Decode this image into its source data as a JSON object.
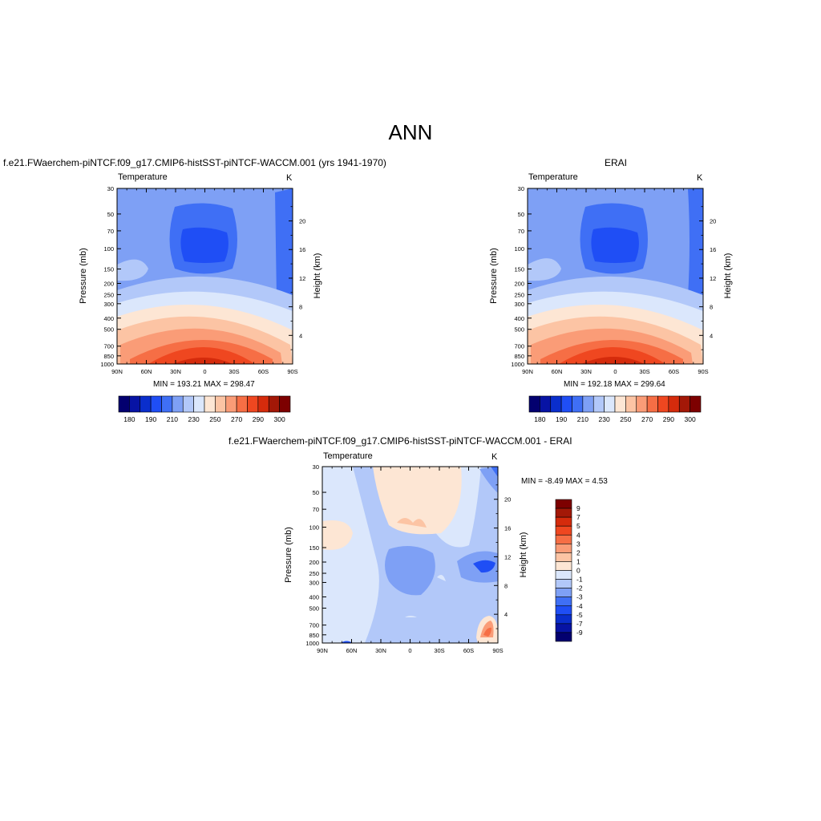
{
  "page_title": "ANN",
  "panels": {
    "model": {
      "title": "f.e21.FWaerchem-piNTCF.f09_g17.CMIP6-histSST-piNTCF-WACCM.001 (yrs 1941-1970)",
      "left_label": "Temperature",
      "right_label": "K",
      "ylabel_left": "Pressure (mb)",
      "ylabel_right": "Height (km)",
      "minmax": "MIN = 193.21  MAX = 298.47"
    },
    "obs": {
      "title": "ERAI",
      "left_label": "Temperature",
      "right_label": "K",
      "ylabel_left": "Pressure (mb)",
      "ylabel_right": "Height (km)",
      "minmax": "MIN = 192.18  MAX = 299.64"
    },
    "diff": {
      "title": "f.e21.FWaerchem-piNTCF.f09_g17.CMIP6-histSST-piNTCF-WACCM.001 - ERAI",
      "left_label": "Temperature",
      "right_label": "K",
      "ylabel_left": "Pressure (mb)",
      "ylabel_right": "Height (km)",
      "minmax": "MIN =  -8.49  MAX =   4.53"
    }
  },
  "chart_data": [
    {
      "type": "heatmap",
      "panel": "model",
      "x_ticks": [
        "90N",
        "60N",
        "30N",
        "0",
        "30S",
        "60S",
        "90S"
      ],
      "y_ticks_pressure": [
        30,
        50,
        70,
        100,
        150,
        200,
        250,
        300,
        400,
        500,
        700,
        850,
        1000
      ],
      "y_ticks_height": [
        20,
        16,
        12,
        8,
        4
      ],
      "min": 193.21,
      "max": 298.47,
      "colorbar_ticks": [
        "180",
        "190",
        "210",
        "230",
        "250",
        "270",
        "290",
        "300"
      ],
      "colorbar_colors": [
        "#03006f",
        "#0713a4",
        "#0a2ecc",
        "#1f4ef5",
        "#3f6ff5",
        "#7ea0f5",
        "#b2c8f9",
        "#dbe7fc",
        "#fde6d4",
        "#fcc4a4",
        "#fa9c77",
        "#f66e45",
        "#ef4720",
        "#d52b0c",
        "#a31807",
        "#7d0000"
      ]
    },
    {
      "type": "heatmap",
      "panel": "obs",
      "x_ticks": [
        "90N",
        "60N",
        "30N",
        "0",
        "30S",
        "60S",
        "90S"
      ],
      "y_ticks_pressure": [
        30,
        50,
        70,
        100,
        150,
        200,
        250,
        300,
        400,
        500,
        700,
        850,
        1000
      ],
      "y_ticks_height": [
        20,
        16,
        12,
        8,
        4
      ],
      "min": 192.18,
      "max": 299.64,
      "colorbar_ticks": [
        "180",
        "190",
        "210",
        "230",
        "250",
        "270",
        "290",
        "300"
      ]
    },
    {
      "type": "heatmap",
      "panel": "diff",
      "x_ticks": [
        "90N",
        "60N",
        "30N",
        "0",
        "30S",
        "60S",
        "90S"
      ],
      "y_ticks_pressure": [
        30,
        50,
        70,
        100,
        150,
        200,
        250,
        300,
        400,
        500,
        700,
        850,
        1000
      ],
      "y_ticks_height": [
        20,
        16,
        12,
        8,
        4
      ],
      "min": -8.49,
      "max": 4.53,
      "colorbar_ticks": [
        "9",
        "7",
        "5",
        "4",
        "3",
        "2",
        "1",
        "0",
        "-1",
        "-2",
        "-3",
        "-4",
        "-5",
        "-7",
        "-9"
      ],
      "colorbar_colors": [
        "#7d0000",
        "#a31807",
        "#d52b0c",
        "#ef4720",
        "#f66e45",
        "#fa9c77",
        "#fcc4a4",
        "#fde6d4",
        "#dbe7fc",
        "#b2c8f9",
        "#7ea0f5",
        "#3f6ff5",
        "#1f4ef5",
        "#0a2ecc",
        "#0713a4",
        "#03006f"
      ]
    }
  ]
}
